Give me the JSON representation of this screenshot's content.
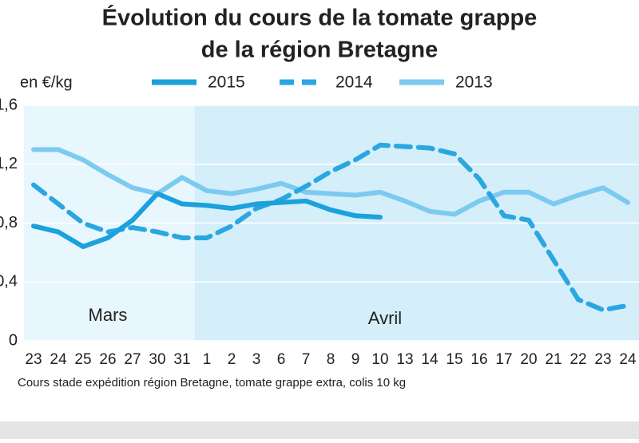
{
  "chart_data": {
    "type": "line",
    "title": [
      "Évolution du cours de la tomate grappe",
      "de la région Bretagne"
    ],
    "y_label": "en €/kg",
    "categories": [
      "23",
      "24",
      "25",
      "26",
      "27",
      "30",
      "31",
      "1",
      "2",
      "3",
      "6",
      "7",
      "8",
      "9",
      "10",
      "13",
      "14",
      "15",
      "16",
      "17",
      "20",
      "21",
      "22",
      "23",
      "24"
    ],
    "series": [
      {
        "name": "2015",
        "color": "#1ba1dc",
        "style": "solid",
        "values": [
          0.78,
          0.74,
          0.64,
          0.7,
          0.82,
          1.0,
          0.93,
          0.92,
          0.9,
          0.93,
          0.94,
          0.95,
          0.89,
          0.85,
          0.84,
          null,
          null,
          null,
          null,
          null,
          null,
          null,
          null,
          null,
          null
        ]
      },
      {
        "name": "2014",
        "color": "#2aa7e0",
        "style": "dashed",
        "values": [
          1.06,
          0.93,
          0.8,
          0.74,
          0.77,
          0.74,
          0.7,
          0.7,
          0.78,
          0.9,
          0.96,
          1.05,
          1.15,
          1.23,
          1.33,
          1.32,
          1.31,
          1.27,
          1.1,
          0.85,
          0.82,
          0.55,
          0.28,
          0.21,
          0.24
        ]
      },
      {
        "name": "2013",
        "color": "#7ccaf0",
        "style": "solid",
        "values": [
          1.3,
          1.3,
          1.23,
          1.13,
          1.04,
          1.0,
          1.11,
          1.02,
          1.0,
          1.03,
          1.07,
          1.01,
          1.0,
          0.99,
          1.01,
          0.95,
          0.88,
          0.86,
          0.95,
          1.01,
          1.01,
          0.93,
          0.99,
          1.04,
          0.94
        ]
      }
    ],
    "ylim": [
      0,
      1.6
    ],
    "yticks": [
      {
        "value": 0,
        "label": "0"
      },
      {
        "value": 0.4,
        "label": "0,4"
      },
      {
        "value": 0.8,
        "label": "0,8"
      },
      {
        "value": 1.2,
        "label": "1,2"
      },
      {
        "value": 1.6,
        "label": "1,6"
      }
    ],
    "grid": true,
    "annotations": [
      "Mars",
      "Avril"
    ],
    "note": "Cours stade expédition région Bretagne, tomate grappe extra, colis 10 kg"
  }
}
